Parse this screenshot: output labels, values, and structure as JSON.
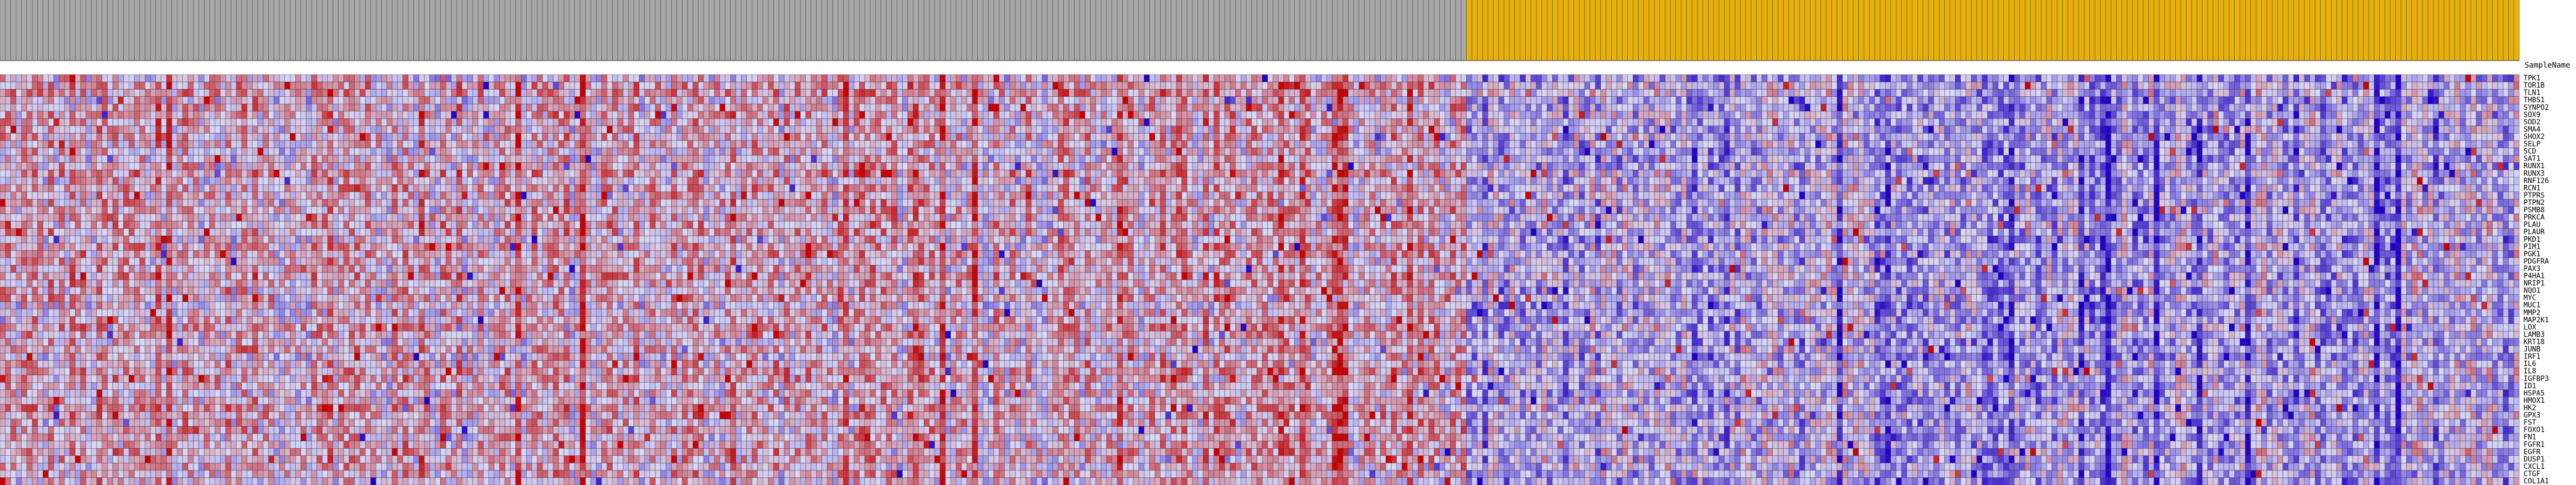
{
  "chart_data": {
    "type": "heatmap",
    "row_header": "SampleName",
    "rows": [
      "TPK1",
      "TOR1B",
      "TLN1",
      "THBS1",
      "SYNPO2",
      "SOX9",
      "SOD2",
      "SMA4",
      "SHOX2",
      "SELP",
      "SCD",
      "SAT1",
      "RUNX1",
      "RUNX3",
      "RNF126",
      "RCN1",
      "PTPRS",
      "PTPN2",
      "PSMB8",
      "PRKCA",
      "PLAU",
      "PLAUR",
      "PKD1",
      "PIM1",
      "PGK1",
      "PDGFRA",
      "PAX3",
      "P4HA1",
      "NRIP1",
      "NQO1",
      "MYC",
      "MUC1",
      "MMP2",
      "MAP2K1",
      "LOX",
      "LAMB3",
      "KRT18",
      "JUNB",
      "IRF1",
      "IL6",
      "IL8",
      "IGFBP3",
      "ID1",
      "HSPA5",
      "HMOX1",
      "HK2",
      "GPX3",
      "FST",
      "FOXO1",
      "FN1",
      "FGFR1",
      "EGFR",
      "DUSP1",
      "CXCL1",
      "CTGF",
      "COL1A1"
    ],
    "column_groups": [
      {
        "name": "grey",
        "count": 273,
        "color": "#a8a8a8"
      },
      {
        "name": "gold",
        "count": 196,
        "color": "#e7b10a"
      }
    ],
    "color_scale": {
      "low": "#2200cc",
      "mid": "#d8d8f8",
      "high": "#cc0000",
      "range": [
        -3,
        3
      ]
    },
    "grid": true
  }
}
